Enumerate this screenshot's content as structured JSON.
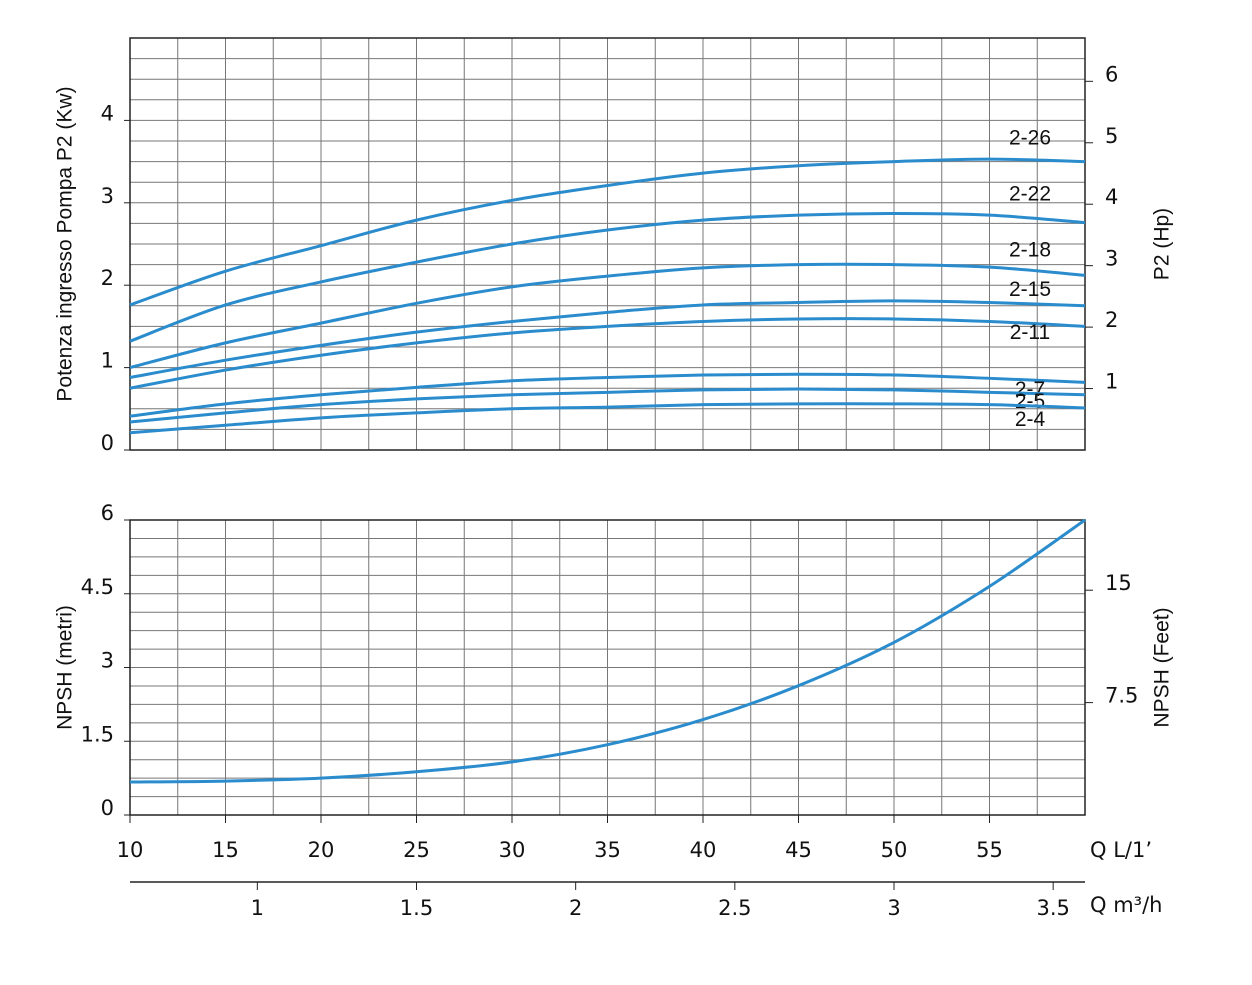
{
  "chart_data": [
    {
      "type": "line",
      "ylabel": "Potenza ingresso Pompa P2 (Kw)",
      "y2label": "P2 (Hp)",
      "x": [
        10,
        15,
        20,
        25,
        30,
        35,
        40,
        45,
        50,
        55,
        60
      ],
      "xlim": [
        10,
        60
      ],
      "ylim": [
        0,
        5
      ],
      "yticks": [
        0,
        1,
        2,
        3,
        4
      ],
      "y2lim": [
        0,
        6.705
      ],
      "y2ticks": [
        1,
        2,
        3,
        4,
        5,
        6
      ],
      "grid": {
        "x_step": 2.5,
        "y_step": 0.25
      },
      "series": [
        {
          "name": "2-26",
          "color": "#2a8ccd",
          "values": [
            1.76,
            2.17,
            2.48,
            2.79,
            3.03,
            3.21,
            3.36,
            3.45,
            3.5,
            3.53,
            3.5
          ]
        },
        {
          "name": "2-22",
          "color": "#2a8ccd",
          "values": [
            1.32,
            1.76,
            2.04,
            2.28,
            2.5,
            2.67,
            2.79,
            2.85,
            2.87,
            2.85,
            2.76
          ]
        },
        {
          "name": "2-18",
          "color": "#2a8ccd",
          "values": [
            1.0,
            1.3,
            1.54,
            1.78,
            1.98,
            2.11,
            2.21,
            2.25,
            2.25,
            2.22,
            2.12
          ]
        },
        {
          "name": "2-15",
          "color": "#2a8ccd",
          "values": [
            0.88,
            1.09,
            1.27,
            1.43,
            1.56,
            1.67,
            1.76,
            1.79,
            1.81,
            1.79,
            1.75
          ]
        },
        {
          "name": "2-11",
          "color": "#2a8ccd",
          "values": [
            0.75,
            0.97,
            1.15,
            1.3,
            1.42,
            1.5,
            1.56,
            1.59,
            1.59,
            1.56,
            1.5
          ]
        },
        {
          "name": "2-7",
          "color": "#2a8ccd",
          "values": [
            0.41,
            0.56,
            0.67,
            0.76,
            0.84,
            0.88,
            0.91,
            0.92,
            0.91,
            0.87,
            0.82
          ]
        },
        {
          "name": "2-5",
          "color": "#2a8ccd",
          "values": [
            0.34,
            0.45,
            0.55,
            0.62,
            0.67,
            0.7,
            0.73,
            0.74,
            0.73,
            0.7,
            0.67
          ]
        },
        {
          "name": "2-4",
          "color": "#2a8ccd",
          "values": [
            0.21,
            0.3,
            0.39,
            0.45,
            0.5,
            0.52,
            0.55,
            0.56,
            0.56,
            0.55,
            0.51
          ]
        }
      ]
    },
    {
      "type": "line",
      "ylabel": "NPSH (metri)",
      "y2label": "NPSH (Feet)",
      "x": [
        10,
        15,
        20,
        25,
        30,
        35,
        40,
        45,
        50,
        55,
        60
      ],
      "xlim": [
        10,
        60
      ],
      "xticks": [
        10,
        15,
        20,
        25,
        30,
        35,
        40,
        45,
        50,
        55
      ],
      "xlabel": "Q L/1’",
      "x2lim": [
        0.6,
        3.6
      ],
      "x2ticks": [
        1,
        1.5,
        2,
        2.5,
        3,
        3.5
      ],
      "x2label": "Q m³/h",
      "ylim": [
        0,
        6
      ],
      "yticks": [
        0,
        1.5,
        3,
        4.5,
        6
      ],
      "y2lim": [
        0,
        19.685
      ],
      "y2ticks": [
        7.5,
        15
      ],
      "grid": {
        "x_step": 2.5,
        "y_step": 0.375
      },
      "series": [
        {
          "color": "#2a8ccd",
          "values": [
            0.67,
            0.69,
            0.75,
            0.88,
            1.08,
            1.43,
            1.94,
            2.63,
            3.51,
            4.65,
            6.0
          ]
        }
      ]
    }
  ]
}
